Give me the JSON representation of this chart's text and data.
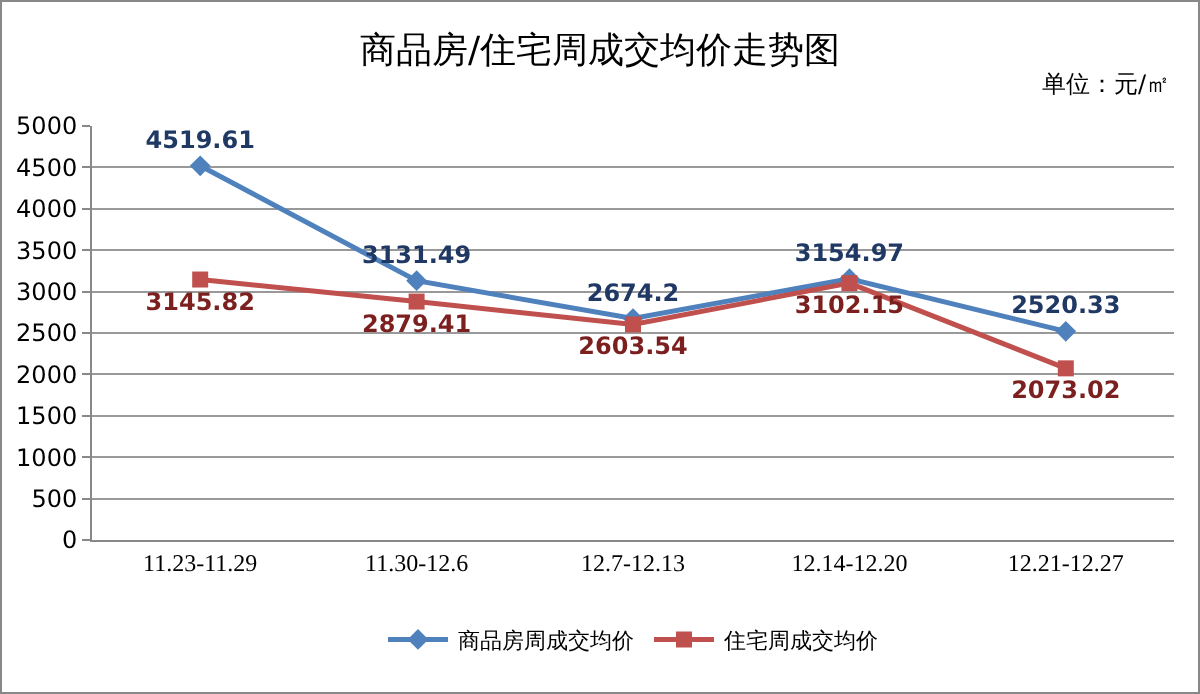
{
  "chart_data": {
    "type": "line",
    "title": "商品房/住宅周成交均价走势图",
    "annotations": [
      "单位：元/㎡"
    ],
    "categories": [
      "11.23-11.29",
      "11.30-12.6",
      "12.7-12.13",
      "12.14-12.20",
      "12.21-12.27"
    ],
    "series": [
      {
        "name": "商品房周成交均价",
        "color": "#4f81bd",
        "marker": "diamond",
        "values": [
          4519.61,
          3131.49,
          2674.2,
          3154.97,
          2520.33
        ]
      },
      {
        "name": "住宅周成交均价",
        "color": "#c0504d",
        "marker": "square",
        "values": [
          3145.82,
          2879.41,
          2603.54,
          3102.15,
          2073.02
        ]
      }
    ],
    "ylim": [
      0,
      5000
    ],
    "yticks": [
      0,
      500,
      1000,
      1500,
      2000,
      2500,
      3000,
      3500,
      4000,
      4500,
      5000
    ],
    "grid": "y",
    "legend": "bottom",
    "data_labels": true
  }
}
